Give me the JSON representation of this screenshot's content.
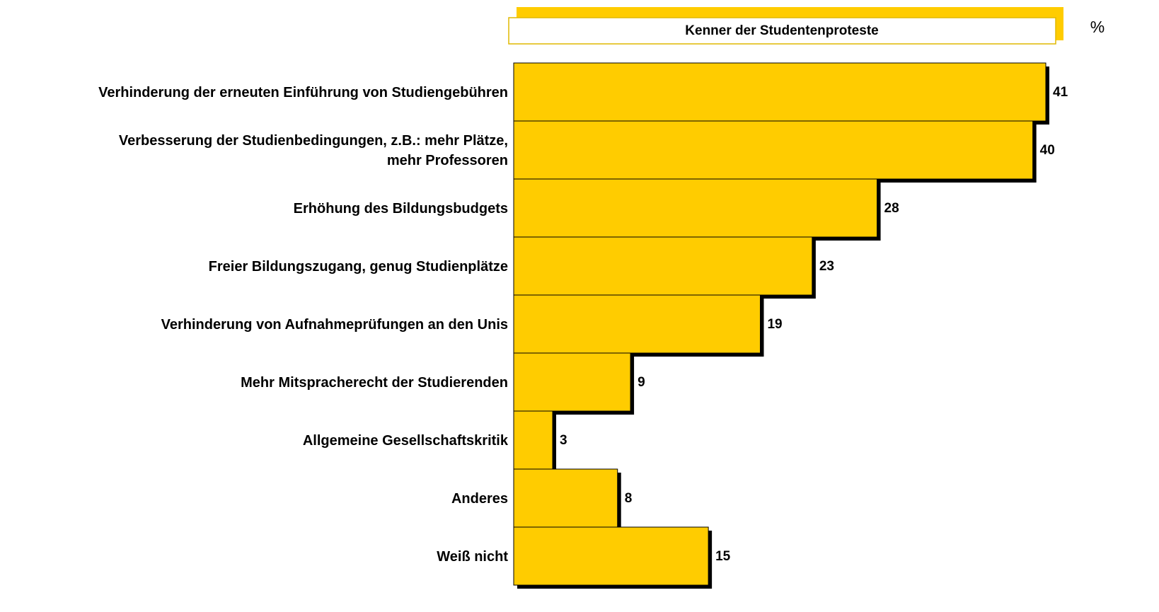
{
  "chart_data": {
    "type": "bar",
    "orientation": "horizontal",
    "unit_label": "%",
    "categories": [
      "Verhinderung der erneuten Einführung von Studiengebühren",
      "Verbesserung der Studienbedingungen, z.B.: mehr Plätze,\nmehr Professoren",
      "Erhöhung des Bildungsbudgets",
      "Freier Bildungszugang, genug Studienplätze",
      "Verhinderung von Aufnahmeprüfungen an den Unis",
      "Mehr Mitspracherecht der Studierenden",
      "Allgemeine Gesellschaftskritik",
      "Anderes",
      "Weiß nicht"
    ],
    "series": [
      {
        "name": "Kenner der Studentenproteste",
        "color": "#ffcc00",
        "values": [
          41,
          40,
          28,
          23,
          19,
          9,
          3,
          8,
          15
        ]
      }
    ]
  }
}
